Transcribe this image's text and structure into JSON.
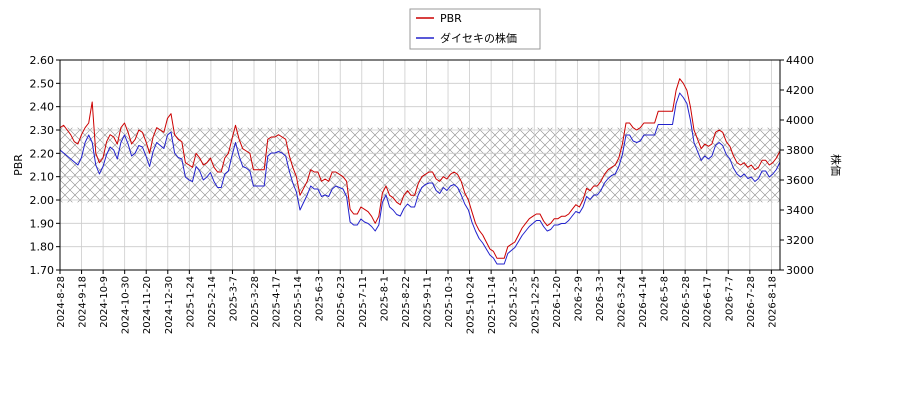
{
  "chart_data": {
    "type": "line",
    "title": "",
    "y_left_label": "PBR",
    "y_right_label": "株価",
    "y_left_range": [
      1.7,
      2.6
    ],
    "y_left_ticks": [
      "1.70",
      "1.80",
      "1.90",
      "2.00",
      "2.10",
      "2.20",
      "2.30",
      "2.40",
      "2.50",
      "2.60"
    ],
    "y_right_range": [
      3000,
      4400
    ],
    "y_right_ticks": [
      "3000",
      "3200",
      "3400",
      "3600",
      "3800",
      "4000",
      "4200",
      "4400"
    ],
    "x_ticks": [
      "2024-8-28",
      "2024-9-18",
      "2024-10-9",
      "2024-10-30",
      "2024-11-20",
      "2024-12-30",
      "2025-1-24",
      "2025-2-14",
      "2025-3-7",
      "2025-3-28",
      "2025-4-17",
      "2025-5-14",
      "2025-6-3",
      "2025-6-23",
      "2025-7-11",
      "2025-8-1",
      "2025-8-22",
      "2025-9-11",
      "2025-10-3",
      "2025-10-24",
      "2025-11-14",
      "2025-12-5",
      "2025-12-25",
      "2026-1-20",
      "2026-2-9",
      "2026-3-3",
      "2026-3-24",
      "2026-4-14",
      "2026-5-8",
      "2026-5-28",
      "2026-6-17",
      "2026-7-7",
      "2026-7-28",
      "2026-8-18"
    ],
    "grid": true,
    "legend_position": "top-center",
    "hatched_band_pbr": [
      1.99,
      2.31
    ],
    "series": [
      {
        "name": "PBR",
        "axis": "left",
        "color": "#cc0000",
        "values": [
          2.31,
          2.32,
          2.3,
          2.28,
          2.25,
          2.24,
          2.28,
          2.31,
          2.33,
          2.42,
          2.2,
          2.16,
          2.18,
          2.25,
          2.28,
          2.27,
          2.24,
          2.31,
          2.33,
          2.29,
          2.24,
          2.26,
          2.3,
          2.29,
          2.25,
          2.2,
          2.27,
          2.31,
          2.3,
          2.29,
          2.35,
          2.37,
          2.28,
          2.26,
          2.25,
          2.16,
          2.15,
          2.14,
          2.2,
          2.18,
          2.15,
          2.16,
          2.18,
          2.14,
          2.12,
          2.12,
          2.18,
          2.2,
          2.26,
          2.32,
          2.26,
          2.22,
          2.21,
          2.2,
          2.13,
          2.13,
          2.13,
          2.13,
          2.26,
          2.27,
          2.27,
          2.28,
          2.27,
          2.26,
          2.19,
          2.14,
          2.1,
          2.02,
          2.05,
          2.08,
          2.13,
          2.12,
          2.12,
          2.08,
          2.09,
          2.08,
          2.12,
          2.12,
          2.11,
          2.1,
          2.08,
          1.96,
          1.94,
          1.94,
          1.97,
          1.96,
          1.95,
          1.93,
          1.9,
          1.93,
          2.03,
          2.06,
          2.02,
          2.01,
          1.99,
          1.98,
          2.02,
          2.04,
          2.02,
          2.02,
          2.07,
          2.1,
          2.11,
          2.12,
          2.12,
          2.09,
          2.08,
          2.1,
          2.09,
          2.11,
          2.12,
          2.11,
          2.08,
          2.03,
          2.0,
          1.95,
          1.9,
          1.87,
          1.85,
          1.82,
          1.79,
          1.78,
          1.75,
          1.75,
          1.75,
          1.8,
          1.81,
          1.82,
          1.85,
          1.88,
          1.9,
          1.92,
          1.93,
          1.94,
          1.94,
          1.91,
          1.89,
          1.9,
          1.92,
          1.92,
          1.93,
          1.93,
          1.94,
          1.96,
          1.98,
          1.97,
          2.0,
          2.05,
          2.04,
          2.06,
          2.06,
          2.08,
          2.11,
          2.13,
          2.14,
          2.15,
          2.18,
          2.24,
          2.33,
          2.33,
          2.31,
          2.3,
          2.31,
          2.33,
          2.33,
          2.33,
          2.33,
          2.38,
          2.38,
          2.38,
          2.38,
          2.38,
          2.47,
          2.52,
          2.5,
          2.47,
          2.4,
          2.3,
          2.26,
          2.22,
          2.24,
          2.23,
          2.24,
          2.29,
          2.3,
          2.29,
          2.25,
          2.23,
          2.19,
          2.16,
          2.15,
          2.16,
          2.14,
          2.15,
          2.13,
          2.14,
          2.17,
          2.17,
          2.15,
          2.16,
          2.18,
          2.21
        ]
      },
      {
        "name": "ダイセキの株価",
        "axis": "right",
        "color": "#2222cc",
        "values": [
          3800,
          3780,
          3760,
          3740,
          3720,
          3700,
          3750,
          3850,
          3900,
          3850,
          3700,
          3640,
          3690,
          3770,
          3820,
          3800,
          3740,
          3850,
          3900,
          3840,
          3760,
          3780,
          3830,
          3820,
          3760,
          3690,
          3790,
          3850,
          3830,
          3810,
          3900,
          3920,
          3780,
          3750,
          3740,
          3620,
          3600,
          3590,
          3690,
          3660,
          3600,
          3620,
          3650,
          3590,
          3550,
          3550,
          3640,
          3660,
          3760,
          3850,
          3760,
          3690,
          3680,
          3660,
          3560,
          3560,
          3560,
          3560,
          3760,
          3780,
          3780,
          3790,
          3780,
          3760,
          3660,
          3580,
          3520,
          3400,
          3450,
          3500,
          3560,
          3540,
          3540,
          3490,
          3500,
          3490,
          3540,
          3560,
          3550,
          3540,
          3490,
          3320,
          3300,
          3300,
          3340,
          3320,
          3310,
          3290,
          3260,
          3300,
          3450,
          3500,
          3420,
          3400,
          3370,
          3360,
          3410,
          3440,
          3420,
          3420,
          3500,
          3550,
          3570,
          3580,
          3580,
          3530,
          3510,
          3550,
          3530,
          3560,
          3570,
          3550,
          3500,
          3440,
          3400,
          3320,
          3260,
          3210,
          3180,
          3140,
          3100,
          3080,
          3040,
          3040,
          3040,
          3110,
          3130,
          3150,
          3190,
          3230,
          3260,
          3290,
          3310,
          3330,
          3330,
          3290,
          3260,
          3270,
          3300,
          3300,
          3310,
          3310,
          3330,
          3360,
          3390,
          3380,
          3420,
          3490,
          3470,
          3500,
          3500,
          3530,
          3580,
          3610,
          3630,
          3640,
          3690,
          3770,
          3900,
          3900,
          3860,
          3850,
          3860,
          3900,
          3900,
          3900,
          3900,
          3970,
          3970,
          3970,
          3970,
          3970,
          4110,
          4180,
          4150,
          4110,
          4000,
          3850,
          3790,
          3730,
          3760,
          3740,
          3760,
          3830,
          3850,
          3830,
          3770,
          3740,
          3680,
          3640,
          3620,
          3640,
          3610,
          3620,
          3590,
          3610,
          3660,
          3660,
          3620,
          3640,
          3670,
          3720
        ]
      }
    ]
  }
}
